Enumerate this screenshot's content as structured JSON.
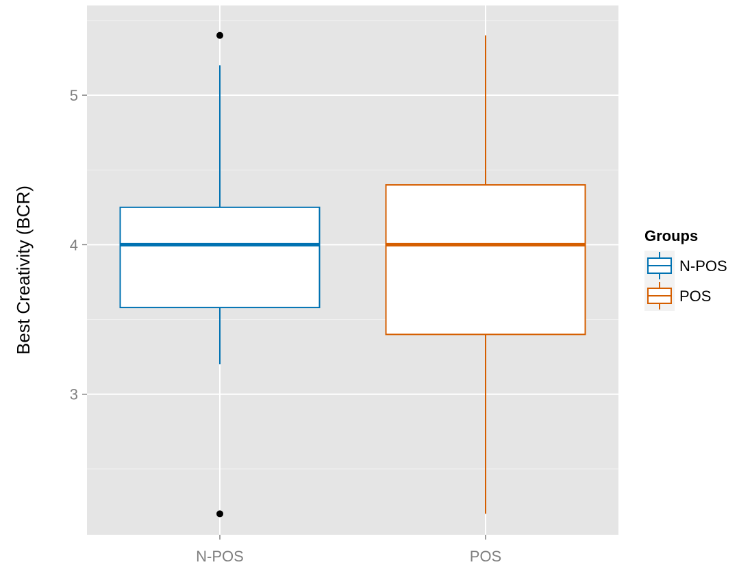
{
  "chart_data": {
    "type": "box",
    "ylabel": "Best Creativity (BCR)",
    "xlabel": "",
    "categories": [
      "N-POS",
      "POS"
    ],
    "ylim": [
      2.06,
      5.6
    ],
    "yticks": [
      3,
      4,
      5
    ],
    "ytick_labels": [
      "3",
      "4",
      "5"
    ],
    "grid": true,
    "legend": {
      "title": "Groups",
      "position": "right",
      "entries": [
        "N-POS",
        "POS"
      ]
    },
    "series": [
      {
        "name": "N-POS",
        "color": "#0072B2",
        "whisker_low": 3.2,
        "q1": 3.58,
        "median": 4.0,
        "q3": 4.25,
        "whisker_high": 5.2,
        "outliers": [
          5.4,
          2.2
        ]
      },
      {
        "name": "POS",
        "color": "#D55E00",
        "whisker_low": 2.2,
        "q1": 3.4,
        "median": 4.0,
        "q3": 4.4,
        "whisker_high": 5.4,
        "outliers": []
      }
    ]
  }
}
